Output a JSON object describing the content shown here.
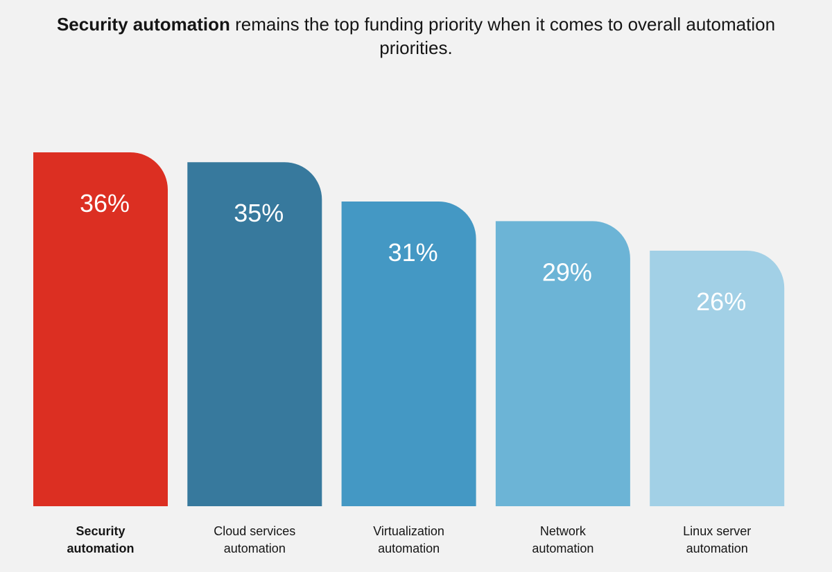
{
  "title": {
    "bold": "Security automation",
    "rest": " remains the top funding priority when it comes to overall automation priorities."
  },
  "chart_data": {
    "type": "bar",
    "categories": [
      [
        "Security",
        "automation"
      ],
      [
        "Cloud services",
        "automation"
      ],
      [
        "Virtualization",
        "automation"
      ],
      [
        "Network",
        "automation"
      ],
      [
        "Linux server",
        "automation"
      ]
    ],
    "values": [
      36,
      35,
      31,
      29,
      26
    ],
    "value_labels": [
      "36%",
      "35%",
      "31%",
      "29%",
      "26%"
    ],
    "colors": [
      "#dc2f22",
      "#37799d",
      "#4498c4",
      "#6cb4d6",
      "#a2d0e6"
    ],
    "highlight_index": 0,
    "ylim": [
      0,
      36
    ],
    "grid": false,
    "legend": "none"
  }
}
